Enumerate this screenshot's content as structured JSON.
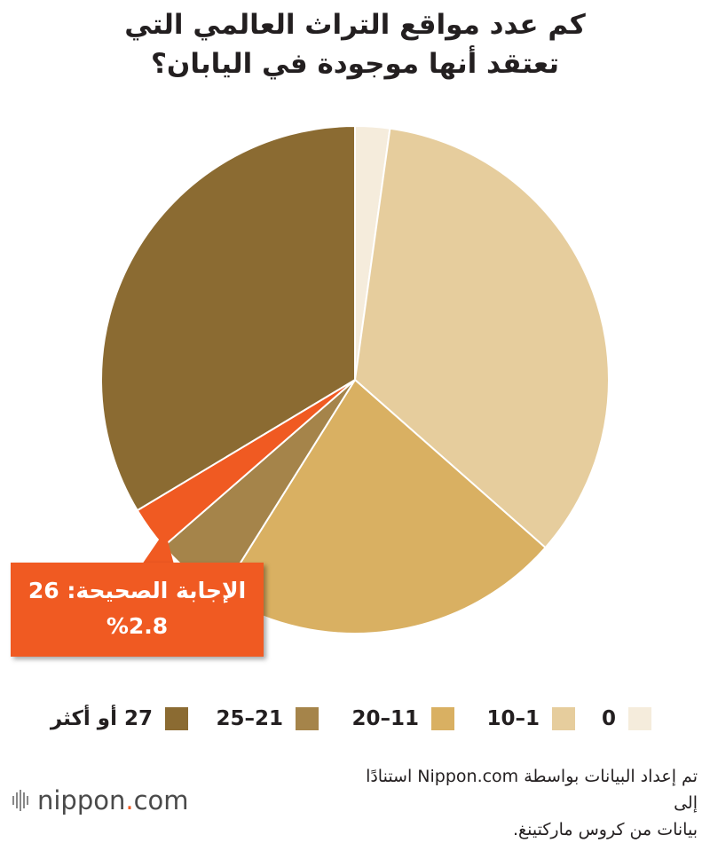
{
  "title_line1": "كم عدد مواقع التراث العالمي التي",
  "title_line2": "تعتقد أنها موجودة في اليابان؟",
  "callout": {
    "line1": "الإجابة الصحيحة: 26",
    "line2": "%2.8",
    "color": "#f05a22"
  },
  "source": {
    "line1": "تم إعداد البيانات بواسطة Nippon.com استنادًا إلى",
    "line2": "بيانات من كروس ماركتينغ."
  },
  "logo": {
    "main": "nippon",
    "dot": ".",
    "suffix": "com"
  },
  "chart_data": {
    "type": "pie",
    "start": "12 o'clock",
    "direction": "clockwise",
    "unit": "%",
    "slices": [
      {
        "label": "0",
        "value": 2.2,
        "color": "#f5ecdc"
      },
      {
        "label": "1–10",
        "value": 34.3,
        "color": "#e6cd9d"
      },
      {
        "label": "11–20",
        "value": 22.4,
        "color": "#d9b062"
      },
      {
        "label": "21–25",
        "value": 4.7,
        "color": "#a5844a"
      },
      {
        "label": "26",
        "value": 2.8,
        "color": "#f05a22"
      },
      {
        "label": "27 أو أكثر",
        "value": 33.6,
        "color": "#8b6b32"
      }
    ],
    "legend": [
      {
        "label": "0",
        "color": "#f5ecdc"
      },
      {
        "label": "1–10",
        "color": "#e6cd9d"
      },
      {
        "label": "11–20",
        "color": "#d9b062"
      },
      {
        "label": "21–25",
        "color": "#a5844a"
      },
      {
        "label": "27 أو أكثر",
        "color": "#8b6b32"
      }
    ]
  }
}
